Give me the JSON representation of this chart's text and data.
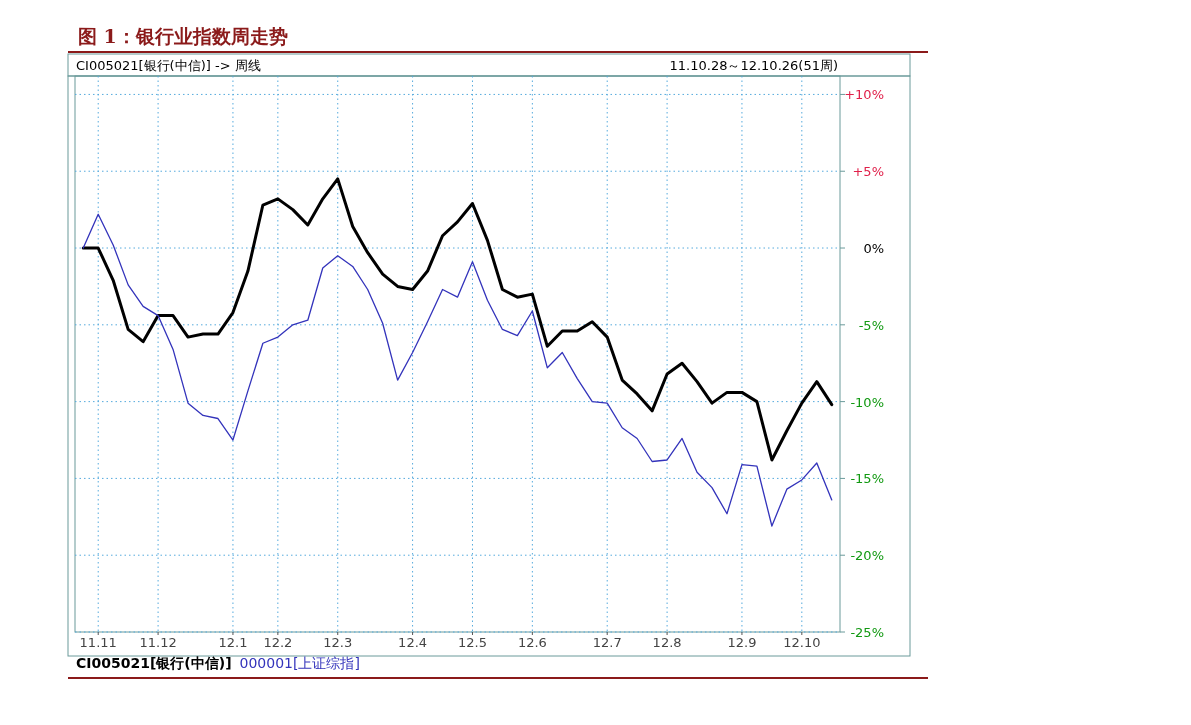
{
  "chart_data": {
    "type": "line",
    "title": "图 1：银行业指数周走势",
    "subtitle": "CI005021[银行(中信)] -> 周线",
    "annotations": [
      "11.10.28～12.10.26(51周)"
    ],
    "categories": [
      null,
      "11.11",
      null,
      null,
      null,
      "11.12",
      null,
      null,
      null,
      null,
      "12.1",
      null,
      null,
      "12.2",
      null,
      null,
      null,
      "12.3",
      null,
      null,
      null,
      null,
      "12.4",
      null,
      null,
      null,
      "12.5",
      null,
      null,
      null,
      "12.6",
      null,
      null,
      null,
      null,
      "12.7",
      null,
      null,
      null,
      "12.8",
      null,
      null,
      null,
      null,
      "12.9",
      null,
      null,
      null,
      "12.10",
      null,
      null
    ],
    "series": [
      {
        "name": "CI005021[银行(中信)]",
        "color": "#000000",
        "values": [
          0,
          0,
          -2.1,
          -5.3,
          -6.1,
          -4.4,
          -4.4,
          -5.8,
          -5.6,
          -5.6,
          -4.2,
          -1.5,
          2.8,
          3.2,
          2.5,
          1.5,
          3.2,
          4.5,
          1.4,
          -0.3,
          -1.7,
          -2.5,
          -2.7,
          -1.5,
          0.8,
          1.7,
          2.9,
          0.5,
          -2.7,
          -3.2,
          -3.0,
          -6.4,
          -5.4,
          -5.4,
          -4.8,
          -5.8,
          -8.6,
          -9.5,
          -10.6,
          -8.2,
          -7.5,
          -8.7,
          -10.1,
          -9.4,
          -9.4,
          -10.0,
          -13.8,
          -11.9,
          -10.1,
          -8.7,
          -10.2
        ]
      },
      {
        "name": "000001[上证综指]",
        "color": "#3333bb",
        "values": [
          0,
          2.2,
          0.2,
          -2.4,
          -3.8,
          -4.4,
          -6.6,
          -10.1,
          -10.9,
          -11.1,
          -12.5,
          -9.3,
          -6.2,
          -5.8,
          -5.0,
          -4.7,
          -1.3,
          -0.5,
          -1.2,
          -2.7,
          -4.9,
          -8.6,
          -6.8,
          -4.8,
          -2.7,
          -3.2,
          -0.9,
          -3.4,
          -5.3,
          -5.7,
          -4.1,
          -7.8,
          -6.8,
          -8.5,
          -10.0,
          -10.1,
          -11.7,
          -12.4,
          -13.9,
          -13.8,
          -12.4,
          -14.6,
          -15.6,
          -17.3,
          -14.1,
          -14.2,
          -18.1,
          -15.7,
          -15.1,
          -14.0,
          -16.4
        ]
      }
    ],
    "ylim": [
      -25,
      11.2
    ],
    "yticks": [
      {
        "value": 10,
        "label": "+10%"
      },
      {
        "value": 5,
        "label": "+5%"
      },
      {
        "value": 0,
        "label": "0%"
      },
      {
        "value": -5,
        "label": "-5%"
      },
      {
        "value": -10,
        "label": "-10%"
      },
      {
        "value": -15,
        "label": "-15%"
      },
      {
        "value": -20,
        "label": "-20%"
      },
      {
        "value": -25,
        "label": "-25%"
      }
    ],
    "grid": true,
    "legend": "bottom left",
    "marker": "none",
    "line_style": "solid"
  }
}
